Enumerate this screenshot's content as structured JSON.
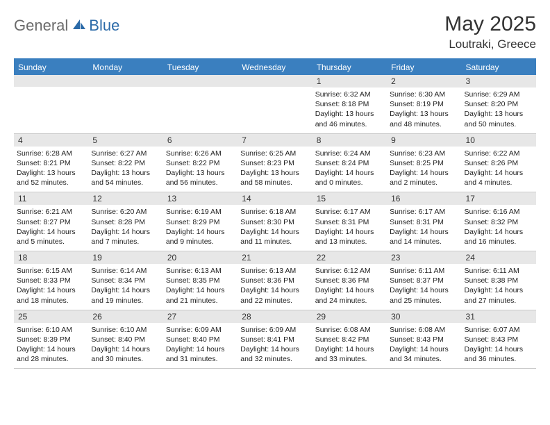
{
  "logo": {
    "part1": "General",
    "part2": "Blue"
  },
  "title": "May 2025",
  "location": "Loutraki, Greece",
  "colors": {
    "header_bg": "#3a7fbf",
    "header_text": "#ffffff",
    "daynum_bg": "#e7e7e7",
    "border": "#c9c9c9",
    "logo_gray": "#6b6b6b",
    "logo_blue": "#2b6aa8"
  },
  "day_headers": [
    "Sunday",
    "Monday",
    "Tuesday",
    "Wednesday",
    "Thursday",
    "Friday",
    "Saturday"
  ],
  "weeks": [
    [
      null,
      null,
      null,
      null,
      {
        "n": "1",
        "sr": "6:32 AM",
        "ss": "8:18 PM",
        "dl": "13 hours and 46 minutes."
      },
      {
        "n": "2",
        "sr": "6:30 AM",
        "ss": "8:19 PM",
        "dl": "13 hours and 48 minutes."
      },
      {
        "n": "3",
        "sr": "6:29 AM",
        "ss": "8:20 PM",
        "dl": "13 hours and 50 minutes."
      }
    ],
    [
      {
        "n": "4",
        "sr": "6:28 AM",
        "ss": "8:21 PM",
        "dl": "13 hours and 52 minutes."
      },
      {
        "n": "5",
        "sr": "6:27 AM",
        "ss": "8:22 PM",
        "dl": "13 hours and 54 minutes."
      },
      {
        "n": "6",
        "sr": "6:26 AM",
        "ss": "8:22 PM",
        "dl": "13 hours and 56 minutes."
      },
      {
        "n": "7",
        "sr": "6:25 AM",
        "ss": "8:23 PM",
        "dl": "13 hours and 58 minutes."
      },
      {
        "n": "8",
        "sr": "6:24 AM",
        "ss": "8:24 PM",
        "dl": "14 hours and 0 minutes."
      },
      {
        "n": "9",
        "sr": "6:23 AM",
        "ss": "8:25 PM",
        "dl": "14 hours and 2 minutes."
      },
      {
        "n": "10",
        "sr": "6:22 AM",
        "ss": "8:26 PM",
        "dl": "14 hours and 4 minutes."
      }
    ],
    [
      {
        "n": "11",
        "sr": "6:21 AM",
        "ss": "8:27 PM",
        "dl": "14 hours and 5 minutes."
      },
      {
        "n": "12",
        "sr": "6:20 AM",
        "ss": "8:28 PM",
        "dl": "14 hours and 7 minutes."
      },
      {
        "n": "13",
        "sr": "6:19 AM",
        "ss": "8:29 PM",
        "dl": "14 hours and 9 minutes."
      },
      {
        "n": "14",
        "sr": "6:18 AM",
        "ss": "8:30 PM",
        "dl": "14 hours and 11 minutes."
      },
      {
        "n": "15",
        "sr": "6:17 AM",
        "ss": "8:31 PM",
        "dl": "14 hours and 13 minutes."
      },
      {
        "n": "16",
        "sr": "6:17 AM",
        "ss": "8:31 PM",
        "dl": "14 hours and 14 minutes."
      },
      {
        "n": "17",
        "sr": "6:16 AM",
        "ss": "8:32 PM",
        "dl": "14 hours and 16 minutes."
      }
    ],
    [
      {
        "n": "18",
        "sr": "6:15 AM",
        "ss": "8:33 PM",
        "dl": "14 hours and 18 minutes."
      },
      {
        "n": "19",
        "sr": "6:14 AM",
        "ss": "8:34 PM",
        "dl": "14 hours and 19 minutes."
      },
      {
        "n": "20",
        "sr": "6:13 AM",
        "ss": "8:35 PM",
        "dl": "14 hours and 21 minutes."
      },
      {
        "n": "21",
        "sr": "6:13 AM",
        "ss": "8:36 PM",
        "dl": "14 hours and 22 minutes."
      },
      {
        "n": "22",
        "sr": "6:12 AM",
        "ss": "8:36 PM",
        "dl": "14 hours and 24 minutes."
      },
      {
        "n": "23",
        "sr": "6:11 AM",
        "ss": "8:37 PM",
        "dl": "14 hours and 25 minutes."
      },
      {
        "n": "24",
        "sr": "6:11 AM",
        "ss": "8:38 PM",
        "dl": "14 hours and 27 minutes."
      }
    ],
    [
      {
        "n": "25",
        "sr": "6:10 AM",
        "ss": "8:39 PM",
        "dl": "14 hours and 28 minutes."
      },
      {
        "n": "26",
        "sr": "6:10 AM",
        "ss": "8:40 PM",
        "dl": "14 hours and 30 minutes."
      },
      {
        "n": "27",
        "sr": "6:09 AM",
        "ss": "8:40 PM",
        "dl": "14 hours and 31 minutes."
      },
      {
        "n": "28",
        "sr": "6:09 AM",
        "ss": "8:41 PM",
        "dl": "14 hours and 32 minutes."
      },
      {
        "n": "29",
        "sr": "6:08 AM",
        "ss": "8:42 PM",
        "dl": "14 hours and 33 minutes."
      },
      {
        "n": "30",
        "sr": "6:08 AM",
        "ss": "8:43 PM",
        "dl": "14 hours and 34 minutes."
      },
      {
        "n": "31",
        "sr": "6:07 AM",
        "ss": "8:43 PM",
        "dl": "14 hours and 36 minutes."
      }
    ]
  ],
  "labels": {
    "sunrise": "Sunrise:",
    "sunset": "Sunset:",
    "daylight": "Daylight:"
  }
}
